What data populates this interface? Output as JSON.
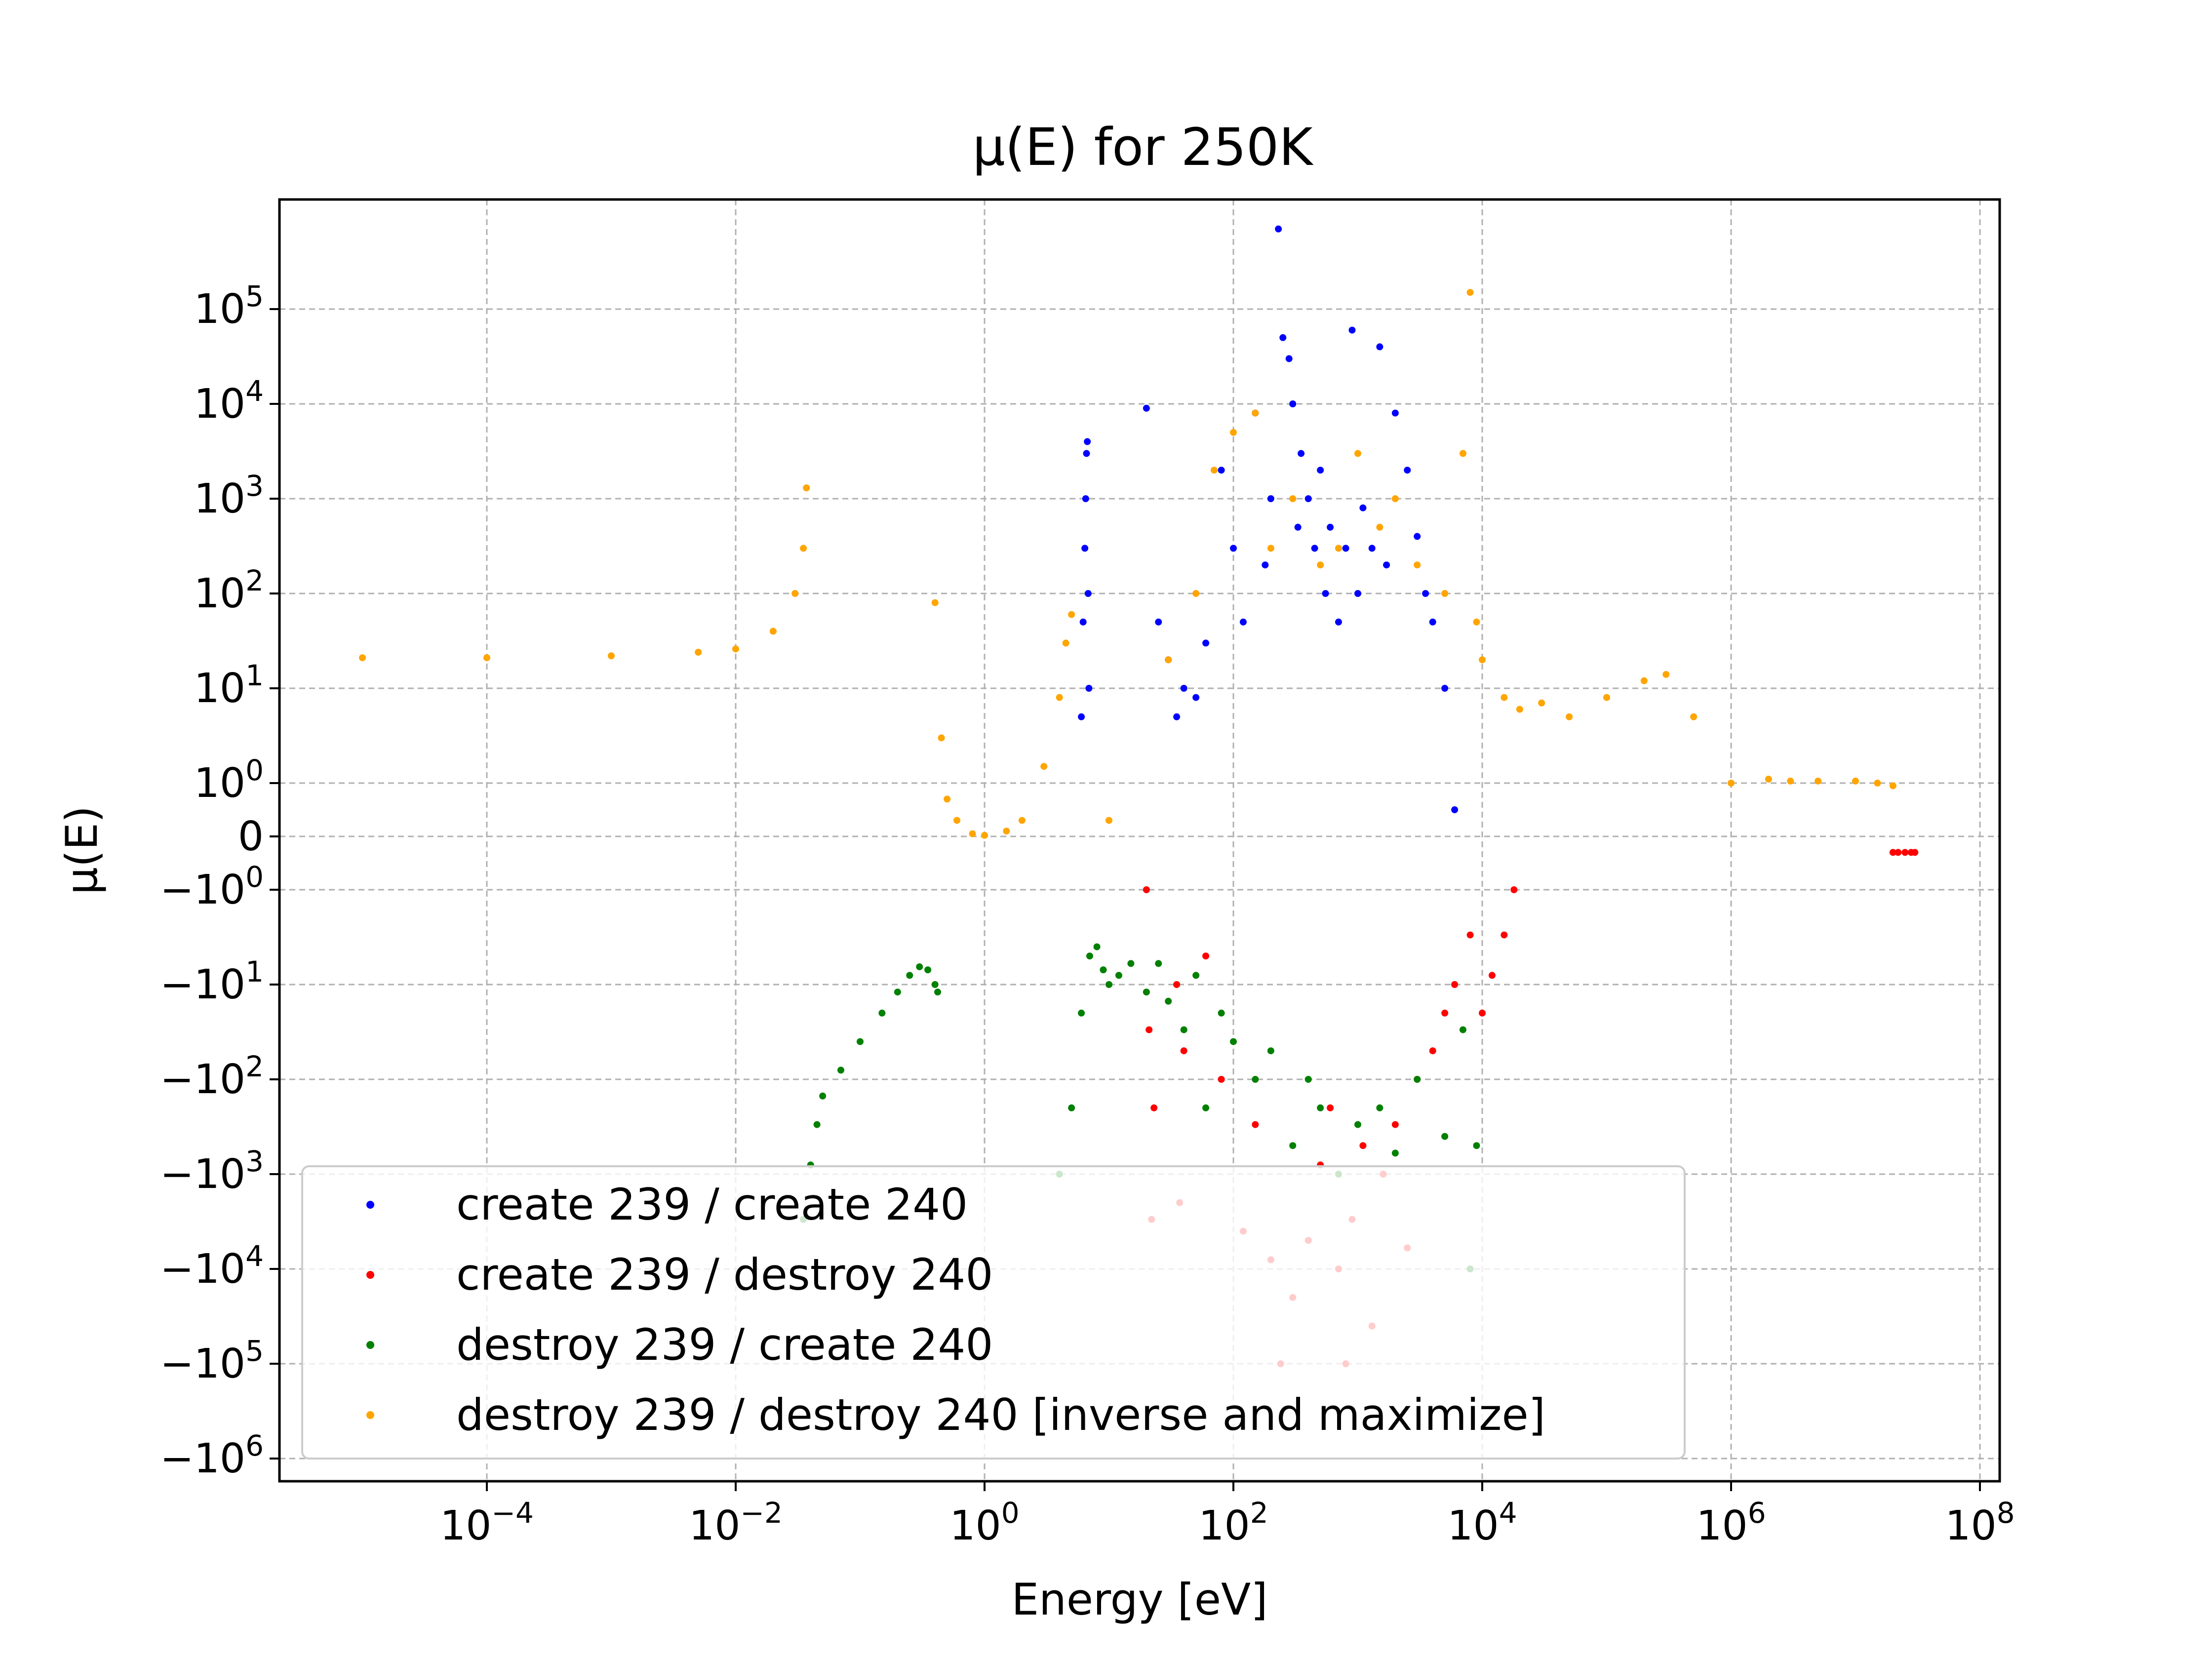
{
  "chart_data": {
    "type": "scatter",
    "title": "μ(E) for 250K",
    "xlabel": "Energy [eV]",
    "ylabel": "μ(E)",
    "xscale": "log",
    "yscale": "symlog",
    "xlim": [
      1e-06,
      100000000.0
    ],
    "ylim": [
      -1000000.0,
      1000000.0
    ],
    "grid": true,
    "legend_position": "lower-left",
    "x_ticks": [
      {
        "base": "10",
        "exp": "−4",
        "value": 0.0001
      },
      {
        "base": "10",
        "exp": "−2",
        "value": 0.01
      },
      {
        "base": "10",
        "exp": "0",
        "value": 1
      },
      {
        "base": "10",
        "exp": "2",
        "value": 100
      },
      {
        "base": "10",
        "exp": "4",
        "value": 10000
      },
      {
        "base": "10",
        "exp": "6",
        "value": 1000000
      },
      {
        "base": "10",
        "exp": "8",
        "value": 100000000
      }
    ],
    "y_ticks": [
      {
        "base": "10",
        "exp": "5",
        "value": 100000
      },
      {
        "base": "10",
        "exp": "4",
        "value": 10000
      },
      {
        "base": "10",
        "exp": "3",
        "value": 1000
      },
      {
        "base": "10",
        "exp": "2",
        "value": 100
      },
      {
        "base": "10",
        "exp": "1",
        "value": 10
      },
      {
        "base": "10",
        "exp": "0",
        "value": 1
      },
      {
        "base": "0",
        "exp": "",
        "value": 0
      },
      {
        "base": "−10",
        "exp": "0",
        "value": -1
      },
      {
        "base": "−10",
        "exp": "1",
        "value": -10
      },
      {
        "base": "−10",
        "exp": "2",
        "value": -100
      },
      {
        "base": "−10",
        "exp": "3",
        "value": -1000
      },
      {
        "base": "−10",
        "exp": "4",
        "value": -10000
      },
      {
        "base": "−10",
        "exp": "5",
        "value": -100000
      },
      {
        "base": "−10",
        "exp": "6",
        "value": -1000000
      }
    ],
    "series": [
      {
        "name": "create 239 / create 240",
        "color": "#0000ff",
        "points": [
          [
            6.0,
            5
          ],
          [
            6.2,
            50
          ],
          [
            6.4,
            300
          ],
          [
            6.5,
            1000
          ],
          [
            6.6,
            3000
          ],
          [
            6.7,
            4000
          ],
          [
            6.8,
            100
          ],
          [
            6.9,
            10
          ],
          [
            20,
            9000
          ],
          [
            25,
            50
          ],
          [
            30,
            20
          ],
          [
            35,
            5
          ],
          [
            40,
            10
          ],
          [
            50,
            8
          ],
          [
            60,
            30
          ],
          [
            80,
            2000
          ],
          [
            100,
            300
          ],
          [
            120,
            50
          ],
          [
            150,
            8000
          ],
          [
            180,
            200
          ],
          [
            200,
            1000
          ],
          [
            230,
            700000
          ],
          [
            250,
            50000
          ],
          [
            280,
            30000
          ],
          [
            300,
            10000
          ],
          [
            330,
            500
          ],
          [
            350,
            3000
          ],
          [
            400,
            1000
          ],
          [
            450,
            300
          ],
          [
            500,
            2000
          ],
          [
            550,
            100
          ],
          [
            600,
            500
          ],
          [
            700,
            50
          ],
          [
            800,
            300
          ],
          [
            900,
            60000
          ],
          [
            1000,
            100
          ],
          [
            1100,
            800
          ],
          [
            1300,
            300
          ],
          [
            1500,
            40000
          ],
          [
            1700,
            200
          ],
          [
            2000,
            8000
          ],
          [
            2500,
            2000
          ],
          [
            3000,
            400
          ],
          [
            3500,
            100
          ],
          [
            4000,
            50
          ],
          [
            5000,
            10
          ],
          [
            6000,
            0.5
          ]
        ]
      },
      {
        "name": "create 239 / destroy 240",
        "color": "#ff0000",
        "points": [
          [
            20,
            -1
          ],
          [
            21,
            -30
          ],
          [
            22,
            -3000
          ],
          [
            23,
            -200
          ],
          [
            35,
            -10
          ],
          [
            37,
            -2000
          ],
          [
            40,
            -50
          ],
          [
            60,
            -5
          ],
          [
            80,
            -100
          ],
          [
            120,
            -4000
          ],
          [
            150,
            -300
          ],
          [
            200,
            -8000
          ],
          [
            240,
            -100000
          ],
          [
            300,
            -20000
          ],
          [
            400,
            -5000
          ],
          [
            500,
            -800
          ],
          [
            600,
            -200
          ],
          [
            700,
            -10000
          ],
          [
            800,
            -100000
          ],
          [
            900,
            -3000
          ],
          [
            1100,
            -500
          ],
          [
            1300,
            -40000
          ],
          [
            1600,
            -1000
          ],
          [
            2000,
            -300
          ],
          [
            2500,
            -6000
          ],
          [
            3000,
            -100
          ],
          [
            4000,
            -50
          ],
          [
            5000,
            -20
          ],
          [
            6000,
            -10
          ],
          [
            8000,
            -3
          ],
          [
            10000,
            -20
          ],
          [
            12000,
            -8
          ],
          [
            15000,
            -3
          ],
          [
            18000,
            -1
          ],
          [
            20000000,
            -0.3
          ],
          [
            22000000,
            -0.3
          ],
          [
            25000000,
            -0.3
          ],
          [
            28000000,
            -0.3
          ],
          [
            30000000,
            -0.3
          ]
        ]
      },
      {
        "name": "destroy 239 / create 240",
        "color": "#008000",
        "points": [
          [
            0.035,
            -3000
          ],
          [
            0.04,
            -800
          ],
          [
            0.045,
            -300
          ],
          [
            0.05,
            -150
          ],
          [
            0.07,
            -80
          ],
          [
            0.1,
            -40
          ],
          [
            0.15,
            -20
          ],
          [
            0.2,
            -12
          ],
          [
            0.25,
            -8
          ],
          [
            0.3,
            -6.5
          ],
          [
            0.35,
            -7
          ],
          [
            0.4,
            -10
          ],
          [
            0.42,
            -12
          ],
          [
            4,
            -1000
          ],
          [
            5,
            -200
          ],
          [
            6,
            -20
          ],
          [
            7,
            -5
          ],
          [
            8,
            -4
          ],
          [
            9,
            -7
          ],
          [
            10,
            -10
          ],
          [
            12,
            -8
          ],
          [
            15,
            -6
          ],
          [
            20,
            -12
          ],
          [
            25,
            -6
          ],
          [
            30,
            -15
          ],
          [
            40,
            -30
          ],
          [
            50,
            -8
          ],
          [
            60,
            -200
          ],
          [
            80,
            -20
          ],
          [
            100,
            -40
          ],
          [
            150,
            -100
          ],
          [
            200,
            -50
          ],
          [
            300,
            -500
          ],
          [
            400,
            -100
          ],
          [
            500,
            -200
          ],
          [
            700,
            -1000
          ],
          [
            1000,
            -300
          ],
          [
            1500,
            -200
          ],
          [
            2000,
            -600
          ],
          [
            3000,
            -100
          ],
          [
            5000,
            -400
          ],
          [
            7000,
            -30
          ],
          [
            8000,
            -10000
          ],
          [
            9000,
            -500
          ]
        ]
      },
      {
        "name": "destroy 239 / destroy 240 [inverse and maximize]",
        "color": "#ffa500",
        "points": [
          [
            1e-06,
            21
          ],
          [
            1e-05,
            21
          ],
          [
            0.0001,
            21
          ],
          [
            0.001,
            22
          ],
          [
            0.005,
            24
          ],
          [
            0.01,
            26
          ],
          [
            0.02,
            40
          ],
          [
            0.03,
            100
          ],
          [
            0.035,
            300
          ],
          [
            0.037,
            1300
          ],
          [
            0.4,
            80
          ],
          [
            0.45,
            3
          ],
          [
            0.5,
            0.7
          ],
          [
            0.6,
            0.3
          ],
          [
            0.8,
            0.05
          ],
          [
            1,
            0.02
          ],
          [
            1.5,
            0.1
          ],
          [
            2,
            0.3
          ],
          [
            3,
            1.5
          ],
          [
            4,
            8
          ],
          [
            4.5,
            30
          ],
          [
            5,
            60
          ],
          [
            10,
            0.3
          ],
          [
            30,
            20
          ],
          [
            50,
            100
          ],
          [
            70,
            2000
          ],
          [
            100,
            5000
          ],
          [
            150,
            8000
          ],
          [
            200,
            300
          ],
          [
            300,
            1000
          ],
          [
            500,
            200
          ],
          [
            700,
            300
          ],
          [
            1000,
            3000
          ],
          [
            1500,
            500
          ],
          [
            2000,
            1000
          ],
          [
            3000,
            200
          ],
          [
            5000,
            100
          ],
          [
            7000,
            3000
          ],
          [
            8000,
            150000
          ],
          [
            9000,
            50
          ],
          [
            10000,
            20
          ],
          [
            15000,
            8
          ],
          [
            20000,
            6
          ],
          [
            30000,
            7
          ],
          [
            50000,
            5
          ],
          [
            100000,
            8
          ],
          [
            200000,
            12
          ],
          [
            300000,
            14
          ],
          [
            500000,
            5
          ],
          [
            1000000,
            1.0
          ],
          [
            2000000,
            1.1
          ],
          [
            3000000,
            1.05
          ],
          [
            5000000,
            1.05
          ],
          [
            10000000,
            1.05
          ],
          [
            15000000,
            1.0
          ],
          [
            20000000,
            0.95
          ]
        ]
      }
    ]
  }
}
